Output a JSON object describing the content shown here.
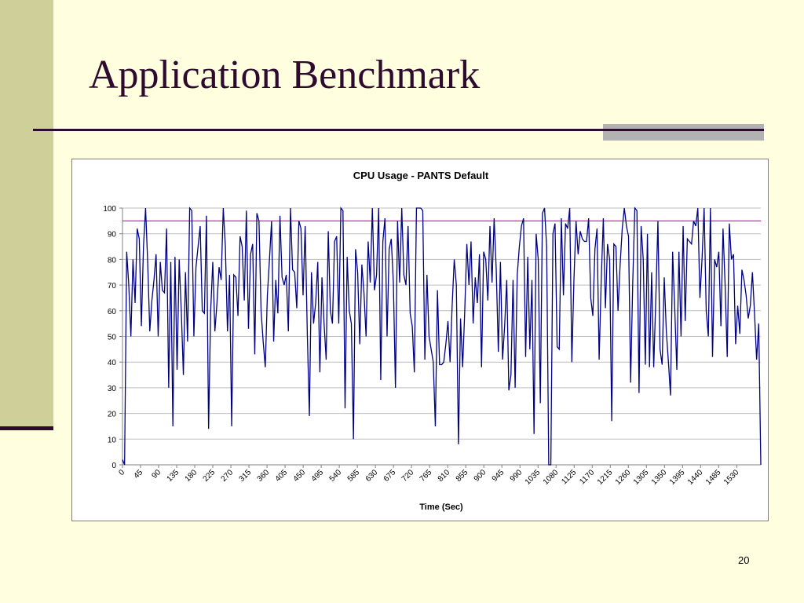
{
  "slide": {
    "title": "Application Benchmark",
    "page_number": "20"
  },
  "colors": {
    "background": "#FFFFE0",
    "title": "#2E0A2E",
    "series": "#000080",
    "reference_line": "#FF00FF",
    "band": "#CFCF9A"
  },
  "chart_data": {
    "type": "line",
    "title": "CPU Usage - PANTS Default",
    "xlabel": "Time (Sec)",
    "ylabel": "",
    "ylim": [
      0,
      100
    ],
    "yticks": [
      0,
      10,
      20,
      30,
      40,
      50,
      60,
      70,
      80,
      90,
      100
    ],
    "xlim": [
      0,
      1590
    ],
    "xticks": [
      0,
      45,
      90,
      135,
      180,
      225,
      270,
      315,
      360,
      405,
      450,
      495,
      540,
      585,
      630,
      675,
      720,
      765,
      810,
      855,
      900,
      945,
      990,
      1035,
      1080,
      1125,
      1170,
      1215,
      1260,
      1305,
      1350,
      1395,
      1440,
      1485,
      1530
    ],
    "grid": true,
    "reference_line": {
      "y": 95
    },
    "series": [
      {
        "values": [
          2,
          0,
          83,
          70,
          50,
          80,
          63,
          92,
          88,
          54,
          85,
          100,
          79,
          52,
          64,
          72,
          82,
          50,
          79,
          68,
          67,
          92,
          30,
          79,
          15,
          81,
          37,
          80,
          60,
          35,
          75,
          48,
          100,
          99,
          50,
          77,
          85,
          93,
          60,
          59,
          97,
          14,
          60,
          79,
          52,
          63,
          77,
          72,
          100,
          85,
          52,
          74,
          15,
          74,
          73,
          58,
          89,
          85,
          64,
          99,
          53,
          82,
          86,
          43,
          98,
          95,
          60,
          48,
          38,
          66,
          80,
          95,
          48,
          72,
          59,
          97,
          73,
          70,
          74,
          52,
          100,
          76,
          75,
          61,
          95,
          92,
          66,
          93,
          52,
          19,
          75,
          55,
          63,
          79,
          36,
          73,
          55,
          41,
          91,
          60,
          55,
          87,
          89,
          55,
          100,
          99,
          22,
          81,
          60,
          55,
          10,
          84,
          75,
          47,
          78,
          67,
          50,
          87,
          71,
          100,
          68,
          74,
          100,
          33,
          87,
          96,
          50,
          84,
          88,
          71,
          30,
          95,
          71,
          100,
          74,
          70,
          93,
          59,
          54,
          36,
          100,
          100,
          100,
          99,
          41,
          74,
          50,
          45,
          40,
          15,
          68,
          39,
          39,
          40,
          47,
          56,
          40,
          62,
          80,
          70,
          8,
          57,
          38,
          60,
          86,
          70,
          87,
          55,
          73,
          63,
          82,
          38,
          83,
          80,
          64,
          93,
          71,
          96,
          76,
          44,
          79,
          41,
          54,
          72,
          29,
          35,
          72,
          30,
          74,
          85,
          93,
          96,
          42,
          81,
          45,
          72,
          12,
          90,
          80,
          24,
          98,
          100,
          85,
          0,
          0,
          90,
          94,
          46,
          45,
          96,
          66,
          94,
          92,
          100,
          40,
          72,
          95,
          82,
          91,
          88,
          87,
          87,
          96,
          65,
          58,
          84,
          92,
          41,
          72,
          96,
          61,
          86,
          80,
          17,
          86,
          85,
          60,
          78,
          92,
          100,
          93,
          89,
          32,
          71,
          100,
          99,
          28,
          93,
          80,
          39,
          90,
          38,
          75,
          38,
          65,
          95,
          45,
          39,
          73,
          52,
          40,
          27,
          83,
          61,
          37,
          83,
          50,
          93,
          56,
          88,
          87,
          86,
          95,
          93,
          100,
          65,
          80,
          100,
          60,
          50,
          100,
          42,
          80,
          77,
          83,
          54,
          92,
          70,
          42,
          94,
          80,
          82,
          47,
          62,
          51,
          76,
          72,
          66,
          57,
          62,
          75,
          59,
          41,
          55,
          0
        ],
        "color": "#000080"
      }
    ]
  }
}
